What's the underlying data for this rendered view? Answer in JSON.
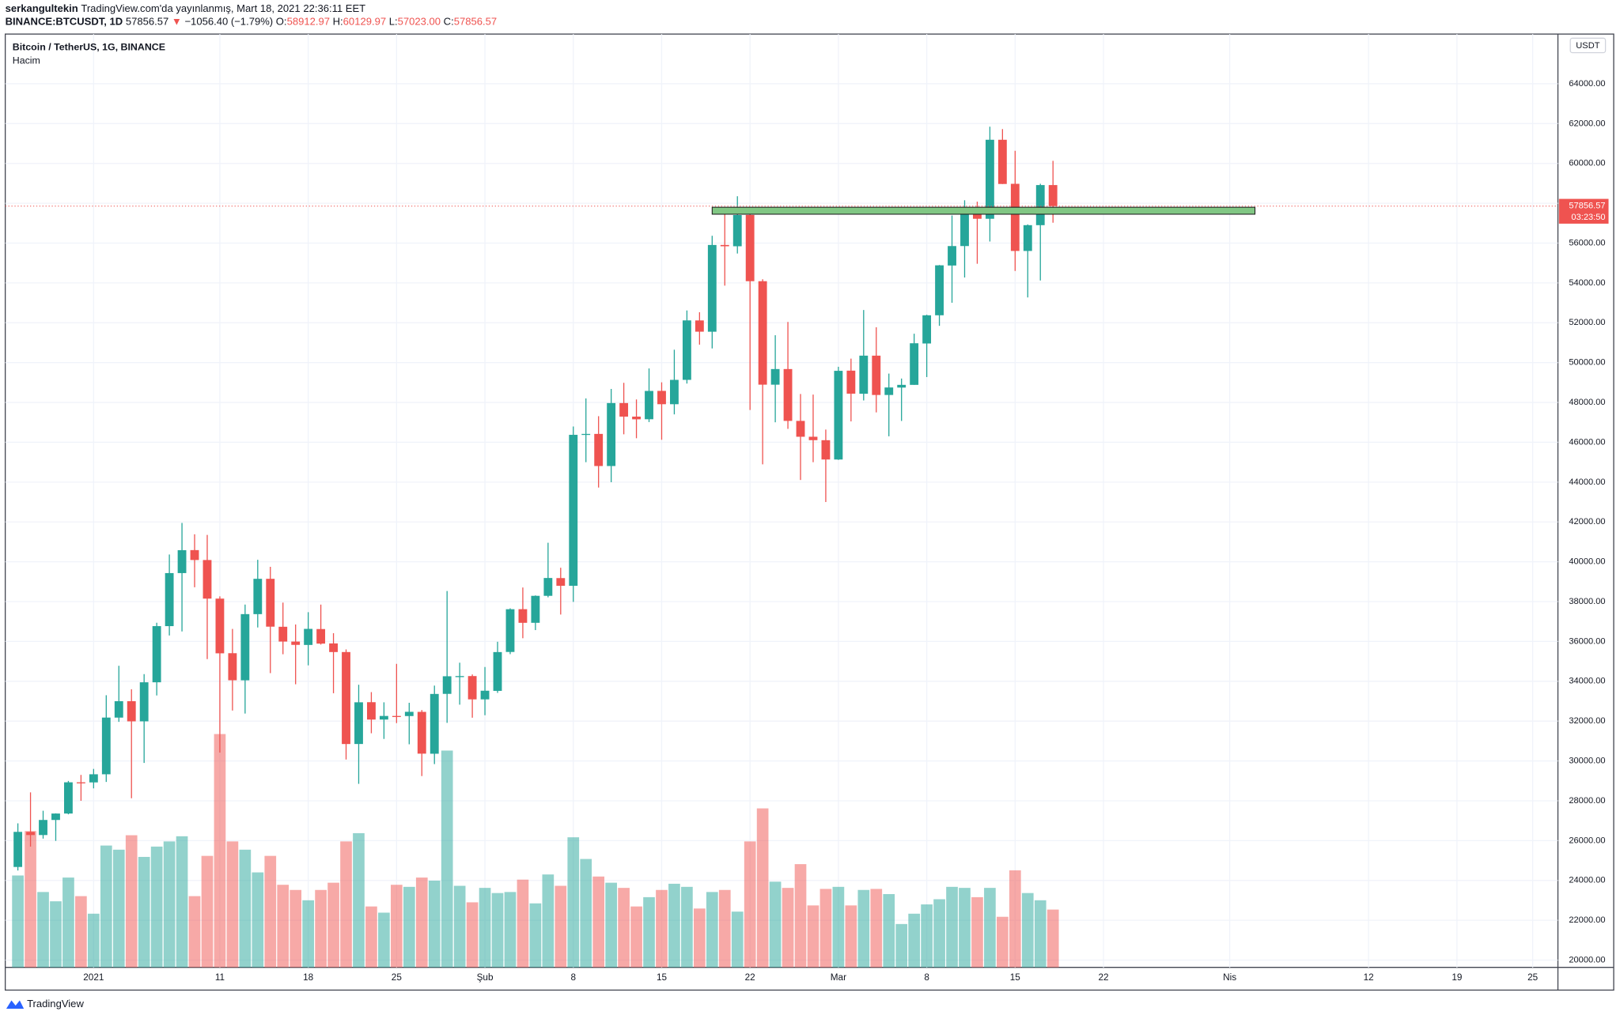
{
  "header": {
    "author": "serkangultekin",
    "published": "TradingView.com'da yayınlanmış, Mart 18, 2021 22:36:11 EET",
    "symbol": "BINANCE:BTCUSDT, 1D",
    "last": "57856.57",
    "arrow": "▼",
    "change": "−1056.40 (−1.79%)",
    "ohlc": [
      {
        "label": "O:",
        "value": "58912.97"
      },
      {
        "label": "H:",
        "value": "60129.97"
      },
      {
        "label": "L:",
        "value": "57023.00"
      },
      {
        "label": "C:",
        "value": "57856.57"
      }
    ]
  },
  "footer": {
    "brand": "TradingView"
  },
  "chart_data": {
    "type": "candlestick",
    "title": "Bitcoin / TetherUS, 1G, BINANCE",
    "volume_label": "Hacim",
    "currency": "USDT",
    "up_color": "#26a69a",
    "down_color": "#ef5350",
    "grid": true,
    "xlim": [
      "2020-12-25",
      "2021-04-27"
    ],
    "xticks": [
      {
        "value": "2021-01-01",
        "label": "2021"
      },
      {
        "value": "2021-01-11",
        "label": "11"
      },
      {
        "value": "2021-01-18",
        "label": "18"
      },
      {
        "value": "2021-01-25",
        "label": "25"
      },
      {
        "value": "2021-02-01",
        "label": "Şub"
      },
      {
        "value": "2021-02-08",
        "label": "8"
      },
      {
        "value": "2021-02-15",
        "label": "15"
      },
      {
        "value": "2021-02-22",
        "label": "22"
      },
      {
        "value": "2021-03-01",
        "label": "Mar"
      },
      {
        "value": "2021-03-08",
        "label": "8"
      },
      {
        "value": "2021-03-15",
        "label": "15"
      },
      {
        "value": "2021-03-22",
        "label": "22"
      },
      {
        "value": "2021-04-01",
        "label": "Nis"
      },
      {
        "value": "2021-04-12",
        "label": "12"
      },
      {
        "value": "2021-04-19",
        "label": "19"
      },
      {
        "value": "2021-04-25",
        "label": "25"
      }
    ],
    "ylim": [
      19636,
      66494
    ],
    "yticks": [
      {
        "value": 20000,
        "label": "20000.00"
      },
      {
        "value": 22000,
        "label": "22000.00"
      },
      {
        "value": 24000,
        "label": "24000.00"
      },
      {
        "value": 26000,
        "label": "26000.00"
      },
      {
        "value": 28000,
        "label": "28000.00"
      },
      {
        "value": 30000,
        "label": "30000.00"
      },
      {
        "value": 32000,
        "label": "32000.00"
      },
      {
        "value": 34000,
        "label": "34000.00"
      },
      {
        "value": 36000,
        "label": "36000.00"
      },
      {
        "value": 38000,
        "label": "38000.00"
      },
      {
        "value": 40000,
        "label": "40000.00"
      },
      {
        "value": 42000,
        "label": "42000.00"
      },
      {
        "value": 44000,
        "label": "44000.00"
      },
      {
        "value": 46000,
        "label": "46000.00"
      },
      {
        "value": 48000,
        "label": "48000.00"
      },
      {
        "value": 50000,
        "label": "50000.00"
      },
      {
        "value": 52000,
        "label": "52000.00"
      },
      {
        "value": 54000,
        "label": "54000.00"
      },
      {
        "value": 56000,
        "label": "56000.00"
      },
      {
        "value": 58000,
        "label": "58000.00"
      },
      {
        "value": 60000,
        "label": "60000.00"
      },
      {
        "value": 62000,
        "label": "62000.00"
      },
      {
        "value": 64000,
        "label": "64000.00"
      }
    ],
    "last_price": {
      "value": 57856.57,
      "label": "57856.57"
    },
    "countdown": "03:23:50",
    "zone": {
      "from": "2021-02-19",
      "to": "2021-04-03",
      "low": 57450,
      "high": 57800,
      "color": "#81c784"
    },
    "x": [
      "2020-12-26",
      "2020-12-27",
      "2020-12-28",
      "2020-12-29",
      "2020-12-30",
      "2020-12-31",
      "2021-01-01",
      "2021-01-02",
      "2021-01-03",
      "2021-01-04",
      "2021-01-05",
      "2021-01-06",
      "2021-01-07",
      "2021-01-08",
      "2021-01-09",
      "2021-01-10",
      "2021-01-11",
      "2021-01-12",
      "2021-01-13",
      "2021-01-14",
      "2021-01-15",
      "2021-01-16",
      "2021-01-17",
      "2021-01-18",
      "2021-01-19",
      "2021-01-20",
      "2021-01-21",
      "2021-01-22",
      "2021-01-23",
      "2021-01-24",
      "2021-01-25",
      "2021-01-26",
      "2021-01-27",
      "2021-01-28",
      "2021-01-29",
      "2021-01-30",
      "2021-01-31",
      "2021-02-01",
      "2021-02-02",
      "2021-02-03",
      "2021-02-04",
      "2021-02-05",
      "2021-02-06",
      "2021-02-07",
      "2021-02-08",
      "2021-02-09",
      "2021-02-10",
      "2021-02-11",
      "2021-02-12",
      "2021-02-13",
      "2021-02-14",
      "2021-02-15",
      "2021-02-16",
      "2021-02-17",
      "2021-02-18",
      "2021-02-19",
      "2021-02-20",
      "2021-02-21",
      "2021-02-22",
      "2021-02-23",
      "2021-02-24",
      "2021-02-25",
      "2021-02-26",
      "2021-02-27",
      "2021-02-28",
      "2021-03-01",
      "2021-03-02",
      "2021-03-03",
      "2021-03-04",
      "2021-03-05",
      "2021-03-06",
      "2021-03-07",
      "2021-03-08",
      "2021-03-09",
      "2021-03-10",
      "2021-03-11",
      "2021-03-12",
      "2021-03-13",
      "2021-03-14",
      "2021-03-15",
      "2021-03-16",
      "2021-03-17",
      "2021-03-18"
    ],
    "open": [
      24677,
      26439,
      26280,
      27037,
      27360,
      28928,
      28923,
      29331,
      32176,
      33000,
      31989,
      33949,
      36769,
      39432,
      40586,
      40088,
      38150,
      35410,
      34049,
      37371,
      39145,
      36737,
      35994,
      35824,
      36622,
      35901,
      35468,
      30851,
      32950,
      32078,
      32259,
      32254,
      32464,
      30362,
      33368,
      34246,
      34262,
      33092,
      33518,
      35472,
      37620,
      36936,
      38290,
      39181,
      38795,
      46374,
      46420,
      44807,
      47969,
      47288,
      47156,
      48580,
      47911,
      49133,
      52117,
      51550,
      55906,
      55841,
      57413,
      54087,
      48891,
      49676,
      47073,
      46277,
      46104,
      45134,
      49596,
      48436,
      50349,
      48374,
      48746,
      48882,
      50959,
      52376,
      54874,
      55851,
      57773,
      57221,
      61188,
      58976,
      55605,
      56900,
      58912.97
    ],
    "high": [
      26867,
      28422,
      27500,
      27370,
      28997,
      29300,
      29600,
      33300,
      34778,
      33600,
      34360,
      36939,
      40365,
      41950,
      41380,
      41350,
      38264,
      36628,
      37850,
      40100,
      39747,
      37950,
      36852,
      37469,
      37850,
      36415,
      35600,
      33826,
      33456,
      32944,
      34875,
      32921,
      32557,
      33783,
      38531,
      34933,
      34342,
      34717,
      35984,
      37662,
      38708,
      38310,
      40955,
      39700,
      46794,
      48200,
      47310,
      48678,
      48985,
      48150,
      49707,
      49010,
      50647,
      52618,
      52530,
      56368,
      57767,
      58352,
      57508,
      54183,
      51374,
      52041,
      48424,
      48394,
      46638,
      49790,
      50200,
      52640,
      51773,
      49448,
      49200,
      51450,
      52402,
      54900,
      57387,
      58150,
      58081,
      61844,
      61724,
      60633,
      56938,
      58978,
      60129.97
    ],
    "low": [
      24500,
      25700,
      26101,
      25987,
      27320,
      28000,
      28624,
      28946,
      31962,
      28130,
      29900,
      33288,
      36300,
      36500,
      38720,
      35111,
      30420,
      32531,
      32380,
      36701,
      34408,
      35357,
      33850,
      34800,
      35844,
      33400,
      30071,
      28850,
      31390,
      31106,
      31900,
      30837,
      29241,
      29842,
      31915,
      32825,
      32171,
      32296,
      33418,
      35362,
      36161,
      36570,
      38215,
      37351,
      37988,
      45000,
      43727,
      43994,
      46400,
      46202,
      47014,
      46125,
      47400,
      48947,
      50901,
      50710,
      53863,
      55477,
      47622,
      44892,
      47003,
      46674,
      44106,
      45000,
      43000,
      45115,
      47047,
      48100,
      47500,
      46300,
      47070,
      48882,
      49274,
      51846,
      53005,
      54272,
      54962,
      56078,
      58966,
      54600,
      53271,
      54123,
      57023.0
    ],
    "close": [
      26439,
      26280,
      27037,
      27360,
      28928,
      28923,
      29331,
      32178,
      33000,
      31988,
      33949,
      36769,
      39432,
      40582,
      40088,
      38150,
      35404,
      34051,
      37372,
      39144,
      36742,
      35994,
      35828,
      36631,
      35891,
      35468,
      30850,
      32945,
      32078,
      32259,
      32254,
      32467,
      30366,
      33364,
      34252,
      34262,
      33092,
      33526,
      35466,
      37618,
      36936,
      38290,
      39186,
      38795,
      46374,
      46420,
      44807,
      47969,
      47287,
      47153,
      48577,
      47911,
      49133,
      52119,
      51552,
      55906,
      55841,
      57408,
      54087,
      48892,
      49676,
      47073,
      46277,
      46106,
      45135,
      49587,
      48440,
      50349,
      48374,
      48751,
      48882,
      50971,
      52375,
      54884,
      55851,
      57773,
      57221,
      61188,
      58968,
      55605,
      56900,
      58912.97,
      57856.57
    ],
    "volume": [
      89000,
      132000,
      73000,
      64000,
      87000,
      69000,
      52000,
      118000,
      114000,
      128000,
      107000,
      117000,
      122000,
      127000,
      69000,
      108000,
      226000,
      122000,
      114000,
      92000,
      108000,
      80000,
      75000,
      65000,
      75000,
      82000,
      122000,
      130000,
      59000,
      53000,
      80000,
      78000,
      87000,
      84000,
      210000,
      79000,
      63000,
      77000,
      72000,
      73000,
      85000,
      62000,
      90000,
      79000,
      126000,
      105000,
      88000,
      82000,
      77000,
      59000,
      68000,
      75000,
      81000,
      78000,
      57000,
      73000,
      75000,
      54000,
      122000,
      154000,
      83000,
      77000,
      100000,
      60000,
      76000,
      78000,
      60000,
      75000,
      76000,
      71000,
      42000,
      52000,
      61000,
      66000,
      78000,
      77000,
      68000,
      77000,
      49000,
      94000,
      72000,
      65000,
      56000
    ]
  }
}
